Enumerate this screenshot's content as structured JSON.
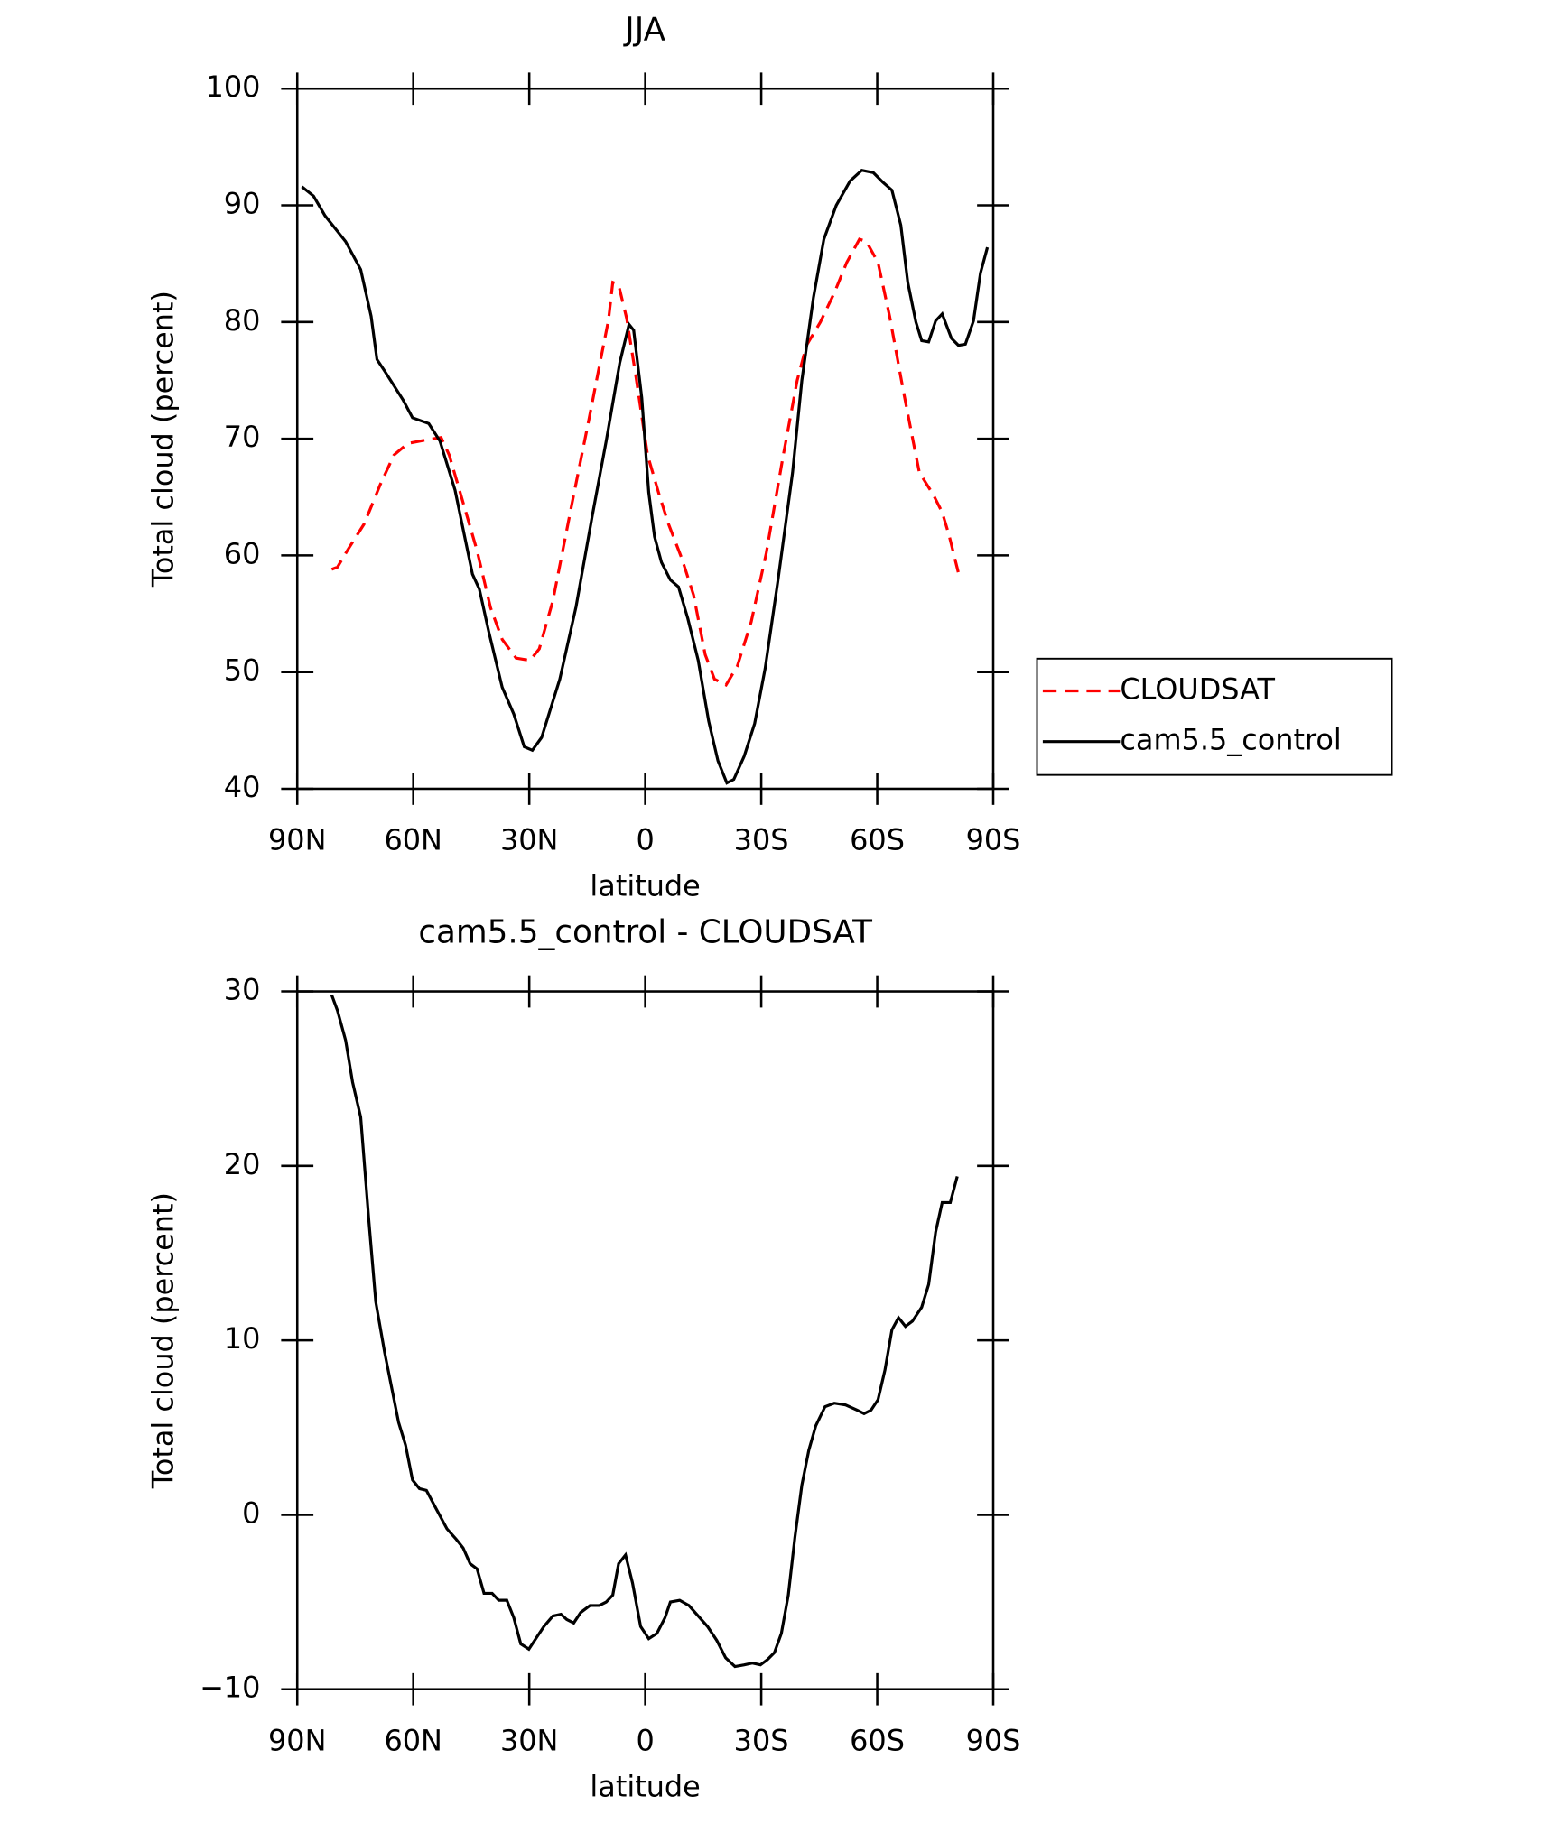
{
  "chart_data": [
    {
      "type": "line",
      "title": "JJA",
      "xlabel": "latitude",
      "ylabel": "Total cloud (percent)",
      "xlim": [
        90,
        -90
      ],
      "xticks": [
        {
          "value": 90,
          "label": "90N"
        },
        {
          "value": 60,
          "label": "60N"
        },
        {
          "value": 30,
          "label": "30N"
        },
        0,
        {
          "value": -30,
          "label": "30S"
        },
        {
          "value": -60,
          "label": "60S"
        },
        {
          "value": -90,
          "label": "90S"
        }
      ],
      "ylim": [
        40,
        100
      ],
      "yticks": [
        40,
        50,
        60,
        70,
        80,
        90,
        100
      ],
      "legend": "right",
      "series": [
        {
          "name": "CLOUDSAT",
          "color": "#ff0000",
          "line_style": "dashed",
          "x": [
            81.1,
            79.6,
            76.9,
            72.7,
            68.5,
            65,
            61.4,
            56.6,
            52.8,
            50.7,
            47.7,
            43.5,
            40,
            37,
            33.4,
            29.8,
            27.4,
            23.9,
            19.1,
            14.9,
            12,
            9.5,
            8.4,
            6.9,
            4.8,
            2.4,
            -0.6,
            -3.6,
            -6,
            -9.5,
            -12.5,
            -15.5,
            -17.9,
            -20.9,
            -23.8,
            -27.4,
            -31.3,
            -35.7,
            -39.3,
            -41.7,
            -45.3,
            -48.9,
            -52.1,
            -55.4,
            -57.2,
            -60.2,
            -63.2,
            -66.7,
            -69.1,
            -70.9,
            -74.5,
            -76.8,
            -78.6,
            -81
          ],
          "values": [
            58.8,
            59,
            60.5,
            62.7,
            66.1,
            68.6,
            69.6,
            69.9,
            70.1,
            68.6,
            65.2,
            60.4,
            55.5,
            52.8,
            51.2,
            51,
            52,
            56.1,
            64.2,
            71.1,
            76,
            80.2,
            83.4,
            83.2,
            80.3,
            75.3,
            68.6,
            65.2,
            62.7,
            59.7,
            56.6,
            51.5,
            49.4,
            48.9,
            50.5,
            54.3,
            60.2,
            68.6,
            75,
            78,
            80,
            82.5,
            85.1,
            87.1,
            86.9,
            85.1,
            80.5,
            74.2,
            70.1,
            67.1,
            65.2,
            63.7,
            61.7,
            58.5
          ]
        },
        {
          "name": "cam5.5_control",
          "color": "#000000",
          "line_style": "solid",
          "x": [
            88.8,
            85.8,
            82.8,
            77.5,
            73.6,
            70.9,
            69.4,
            67.4,
            62.6,
            60.2,
            56,
            53.1,
            49.2,
            44.7,
            42.9,
            40.5,
            37,
            34,
            31.3,
            29.2,
            26.8,
            22.1,
            17.9,
            13.7,
            10.1,
            6.6,
            4.2,
            3,
            0.9,
            -0.9,
            -2.4,
            -4.2,
            -6.5,
            -8.6,
            -11,
            -13.7,
            -16.4,
            -18.8,
            -21.1,
            -22.9,
            -25.6,
            -28.3,
            -31,
            -34.3,
            -38.1,
            -40.5,
            -43.5,
            -46.2,
            -49.4,
            -53,
            -56,
            -59,
            -61.4,
            -63.8,
            -66.1,
            -67.9,
            -70,
            -71.5,
            -73.3,
            -75.1,
            -76.8,
            -79.2,
            -81,
            -82.8,
            -84.9,
            -86.7,
            -88.5
          ],
          "values": [
            91.6,
            90.8,
            89.1,
            86.9,
            84.5,
            80.5,
            76.8,
            75.8,
            73.3,
            71.8,
            71.3,
            69.8,
            65.6,
            58.4,
            57.1,
            53.5,
            48.7,
            46.4,
            43.6,
            43.3,
            44.4,
            49.4,
            55.6,
            63.4,
            69.8,
            76.5,
            79.8,
            79.3,
            73.5,
            65.4,
            61.6,
            59.4,
            57.9,
            57.3,
            54.6,
            51,
            45.8,
            42.4,
            40.5,
            40.8,
            42.8,
            45.6,
            50.3,
            57.8,
            67.1,
            75,
            82.1,
            87.1,
            90,
            92.1,
            93,
            92.8,
            92,
            91.3,
            88.3,
            83.4,
            80,
            78.4,
            78.3,
            80.1,
            80.7,
            78.6,
            78,
            78.1,
            80.1,
            84.2,
            86.4
          ]
        }
      ]
    },
    {
      "type": "line",
      "title": "cam5.5_control - CLOUDSAT",
      "xlabel": "latitude",
      "ylabel": "Total cloud (percent)",
      "xlim": [
        90,
        -90
      ],
      "xticks": [
        {
          "value": 90,
          "label": "90N"
        },
        {
          "value": 60,
          "label": "60N"
        },
        {
          "value": 30,
          "label": "30N"
        },
        0,
        {
          "value": -30,
          "label": "30S"
        },
        {
          "value": -60,
          "label": "60S"
        },
        {
          "value": -90,
          "label": "90S"
        }
      ],
      "ylim": [
        -10,
        30
      ],
      "yticks": [
        {
          "value": -10,
          "label": "−10"
        },
        0,
        10,
        20,
        30
      ],
      "series": [
        {
          "color": "#000000",
          "line_style": "solid",
          "x": [
            81.1,
            79.6,
            77.5,
            75.7,
            73.6,
            71.5,
            69.7,
            67.4,
            63.8,
            62,
            60.2,
            58.4,
            56.6,
            54.2,
            51.3,
            48.9,
            47.1,
            45.3,
            43.5,
            41.7,
            39.6,
            37.9,
            35.8,
            34,
            32.2,
            30.1,
            28.3,
            26.2,
            23.9,
            21.8,
            20.3,
            18.5,
            16.7,
            14.3,
            11.9,
            10.1,
            8.4,
            6.9,
            5.1,
            3.3,
            1.2,
            -0.9,
            -3,
            -5.1,
            -6.5,
            -8.9,
            -11.3,
            -13.7,
            -16.1,
            -18.5,
            -20.8,
            -23.2,
            -25.6,
            -27.7,
            -29.8,
            -31.6,
            -33.4,
            -35.2,
            -37,
            -38.7,
            -40.5,
            -42.3,
            -44.1,
            -46.5,
            -48.9,
            -51.8,
            -54.8,
            -56.6,
            -58.4,
            -60.2,
            -62,
            -63.8,
            -65.5,
            -67.3,
            -69.1,
            -71.5,
            -73.3,
            -75.1,
            -76.8,
            -78.9,
            -80.7
          ],
          "values": [
            29.8,
            28.9,
            27.2,
            24.8,
            22.8,
            16.9,
            12.2,
            9.3,
            5.3,
            4,
            2,
            1.5,
            1.4,
            0.4,
            -0.8,
            -1.4,
            -1.9,
            -2.8,
            -3.1,
            -4.5,
            -4.5,
            -4.9,
            -4.9,
            -5.9,
            -7.4,
            -7.7,
            -7.1,
            -6.4,
            -5.8,
            -5.7,
            -6,
            -6.2,
            -5.6,
            -5.2,
            -5.2,
            -5,
            -4.6,
            -2.8,
            -2.3,
            -3.9,
            -6.4,
            -7.1,
            -6.8,
            -5.9,
            -5,
            -4.9,
            -5.2,
            -5.8,
            -6.4,
            -7.2,
            -8.2,
            -8.7,
            -8.6,
            -8.5,
            -8.6,
            -8.3,
            -7.9,
            -6.8,
            -4.6,
            -1.3,
            1.7,
            3.7,
            5.1,
            6.2,
            6.4,
            6.3,
            6,
            5.8,
            6,
            6.6,
            8.3,
            10.6,
            11.3,
            10.8,
            11.1,
            11.9,
            13.2,
            16.2,
            17.9,
            17.9,
            19.4
          ]
        }
      ]
    }
  ]
}
